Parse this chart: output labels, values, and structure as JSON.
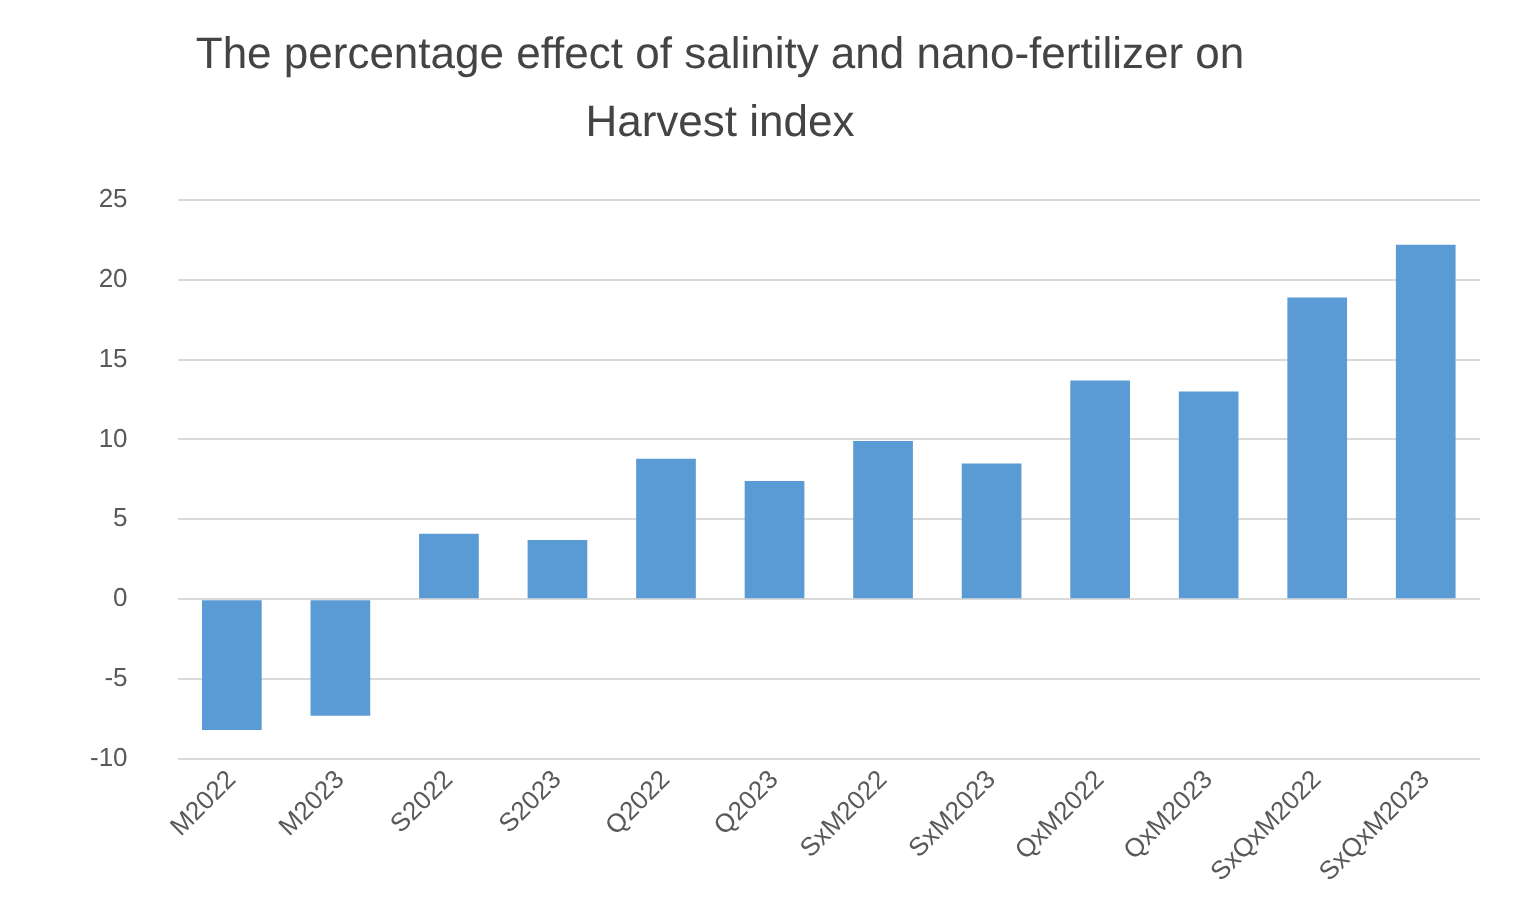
{
  "chart_data": {
    "type": "bar",
    "title": "The percentage effect of salinity and nano-fertilizer on  Harvest index",
    "categories": [
      "M2022",
      "M2023",
      "S2022",
      "S2023",
      "Q2022",
      "Q2023",
      "SxM2022",
      "SxM2023",
      "QxM2022",
      "QxM2023",
      "SxQxM2022",
      "SxQxM2023"
    ],
    "values": [
      -8.2,
      -7.3,
      4.1,
      3.7,
      8.8,
      7.4,
      9.9,
      8.5,
      13.7,
      13.0,
      18.9,
      22.2
    ],
    "color": "#5b9bd5",
    "ylim": [
      -10,
      25
    ],
    "yticks": [
      -10,
      -5,
      0,
      5,
      10,
      15,
      20,
      25
    ],
    "grid": "y",
    "legend": false
  }
}
